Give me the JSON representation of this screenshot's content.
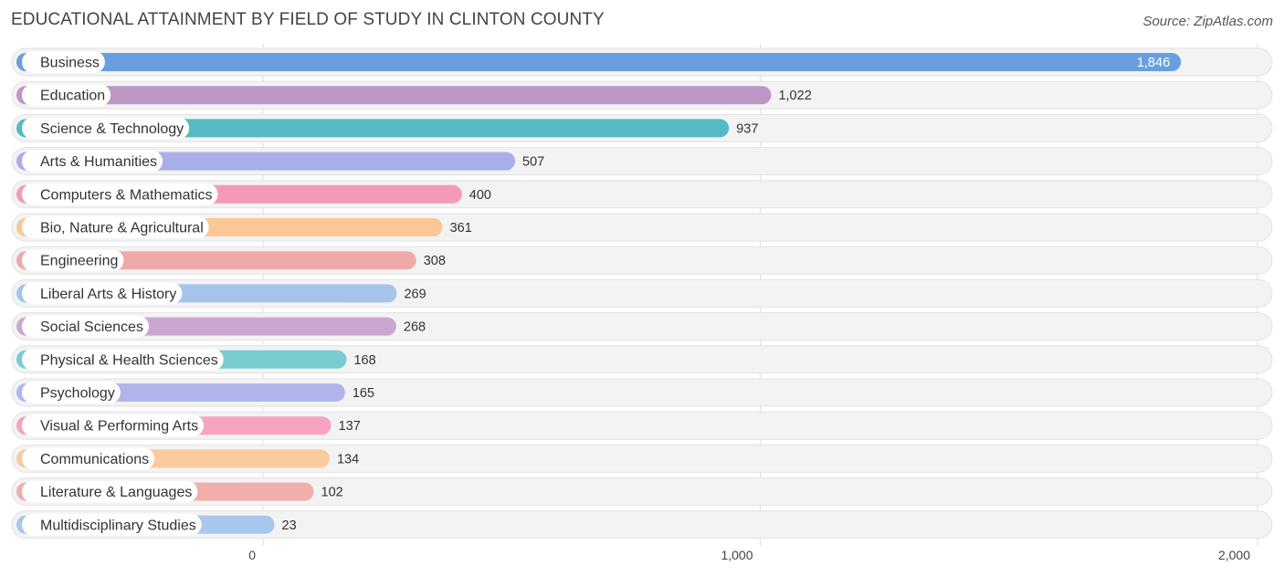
{
  "header": {
    "title": "EDUCATIONAL ATTAINMENT BY FIELD OF STUDY IN CLINTON COUNTY",
    "source": "Source: ZipAtlas.com"
  },
  "chart_data": {
    "type": "bar",
    "orientation": "horizontal",
    "title": "EDUCATIONAL ATTAINMENT BY FIELD OF STUDY IN CLINTON COUNTY",
    "xlabel": "",
    "ylabel": "",
    "xlim": [
      0,
      2000
    ],
    "grid": true,
    "ticks": [
      {
        "value": 0,
        "label": "0"
      },
      {
        "value": 1000,
        "label": "1,000"
      },
      {
        "value": 2000,
        "label": "2,000"
      }
    ],
    "categories": [
      "Business",
      "Education",
      "Science & Technology",
      "Arts & Humanities",
      "Computers & Mathematics",
      "Bio, Nature & Agricultural",
      "Engineering",
      "Liberal Arts & History",
      "Social Sciences",
      "Physical & Health Sciences",
      "Psychology",
      "Visual & Performing Arts",
      "Communications",
      "Literature & Languages",
      "Multidisciplinary Studies"
    ],
    "values": [
      1846,
      1022,
      937,
      507,
      400,
      361,
      308,
      269,
      268,
      168,
      165,
      137,
      134,
      102,
      23
    ],
    "value_labels": [
      "1,846",
      "1,022",
      "937",
      "507",
      "400",
      "361",
      "308",
      "269",
      "268",
      "168",
      "165",
      "137",
      "134",
      "102",
      "23"
    ],
    "colors": [
      "#6a9fdf",
      "#bd97c5",
      "#56bac4",
      "#a8aee8",
      "#f49ab6",
      "#f9c896",
      "#efa9a7",
      "#a6c4eb",
      "#c9a8d0",
      "#79ccd0",
      "#b0b6ed",
      "#f6a4c2",
      "#fbca9d",
      "#f0afaa",
      "#a9c6ed"
    ]
  }
}
